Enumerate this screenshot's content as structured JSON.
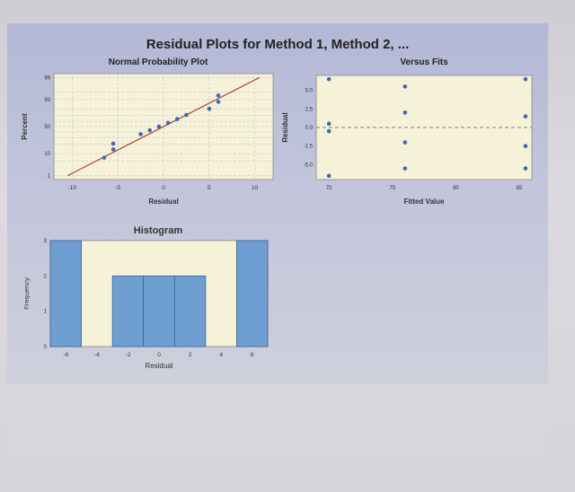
{
  "title": "Residual Plots for Method 1, Method 2, ...",
  "colors": {
    "plot_bg": "#f6f2d8",
    "point": "#3f68b8",
    "bar": "#6f9fd2",
    "bar_edge": "#3b5e93",
    "fit_line": "#b03a3a",
    "grid": "#c8c8d2",
    "ref_line": "#7f7f7f"
  },
  "chart_data": [
    {
      "type": "scatter",
      "title": "Normal Probability Plot",
      "xlabel": "Residual",
      "ylabel": "Percent",
      "xlim": [
        -12,
        12
      ],
      "x_ticks": [
        -10,
        -5,
        0,
        5,
        10
      ],
      "y_ticks": [
        1,
        10,
        50,
        90,
        99
      ],
      "points": [
        {
          "x": -6.5,
          "y": 7
        },
        {
          "x": -5.5,
          "y": 14
        },
        {
          "x": -5.5,
          "y": 21
        },
        {
          "x": -2.5,
          "y": 36
        },
        {
          "x": -1.5,
          "y": 43
        },
        {
          "x": -0.5,
          "y": 50
        },
        {
          "x": 0.5,
          "y": 57
        },
        {
          "x": 1.5,
          "y": 64
        },
        {
          "x": 2.5,
          "y": 71
        },
        {
          "x": 5.0,
          "y": 80
        },
        {
          "x": 6.0,
          "y": 88
        },
        {
          "x": 6.0,
          "y": 93
        }
      ],
      "fit_line": {
        "x": [
          -10.5,
          10.5
        ],
        "y": [
          1,
          99
        ]
      },
      "grid": true
    },
    {
      "type": "scatter",
      "title": "Versus Fits",
      "xlabel": "Fitted Value",
      "ylabel": "Residual",
      "xlim": [
        69,
        86
      ],
      "ylim": [
        -7,
        7
      ],
      "x_ticks": [
        70,
        75,
        80,
        85
      ],
      "y_tick_values": [
        -5,
        -2.5,
        0,
        2.5,
        5
      ],
      "y_tick_labels": [
        "-5.0",
        "-2.5",
        "0.0",
        "2.5",
        "5.0"
      ],
      "points": [
        {
          "x": 70,
          "y": 6.5
        },
        {
          "x": 70,
          "y": 0.5
        },
        {
          "x": 70,
          "y": -0.5
        },
        {
          "x": 70,
          "y": -6.5
        },
        {
          "x": 76,
          "y": 5.5
        },
        {
          "x": 76,
          "y": 2.0
        },
        {
          "x": 76,
          "y": -2.0
        },
        {
          "x": 76,
          "y": -5.5
        },
        {
          "x": 85.5,
          "y": 6.5
        },
        {
          "x": 85.5,
          "y": 1.5
        },
        {
          "x": 85.5,
          "y": -2.5
        },
        {
          "x": 85.5,
          "y": -5.5
        }
      ],
      "reference_line_y": 0,
      "grid": false
    },
    {
      "type": "bar",
      "title": "Histogram",
      "xlabel": "Residual",
      "ylabel": "Frequency",
      "xlim": [
        -7,
        7
      ],
      "ylim": [
        0,
        3
      ],
      "x_ticks": [
        -6,
        -4,
        -2,
        0,
        2,
        4,
        6
      ],
      "y_ticks": [
        0,
        1,
        2,
        3
      ],
      "bins": [
        {
          "center": -6,
          "count": 3
        },
        {
          "center": -4,
          "count": 0
        },
        {
          "center": -2,
          "count": 2
        },
        {
          "center": 0,
          "count": 2
        },
        {
          "center": 2,
          "count": 2
        },
        {
          "center": 4,
          "count": 0
        },
        {
          "center": 6,
          "count": 3
        }
      ],
      "bin_width": 2,
      "grid": false
    }
  ]
}
